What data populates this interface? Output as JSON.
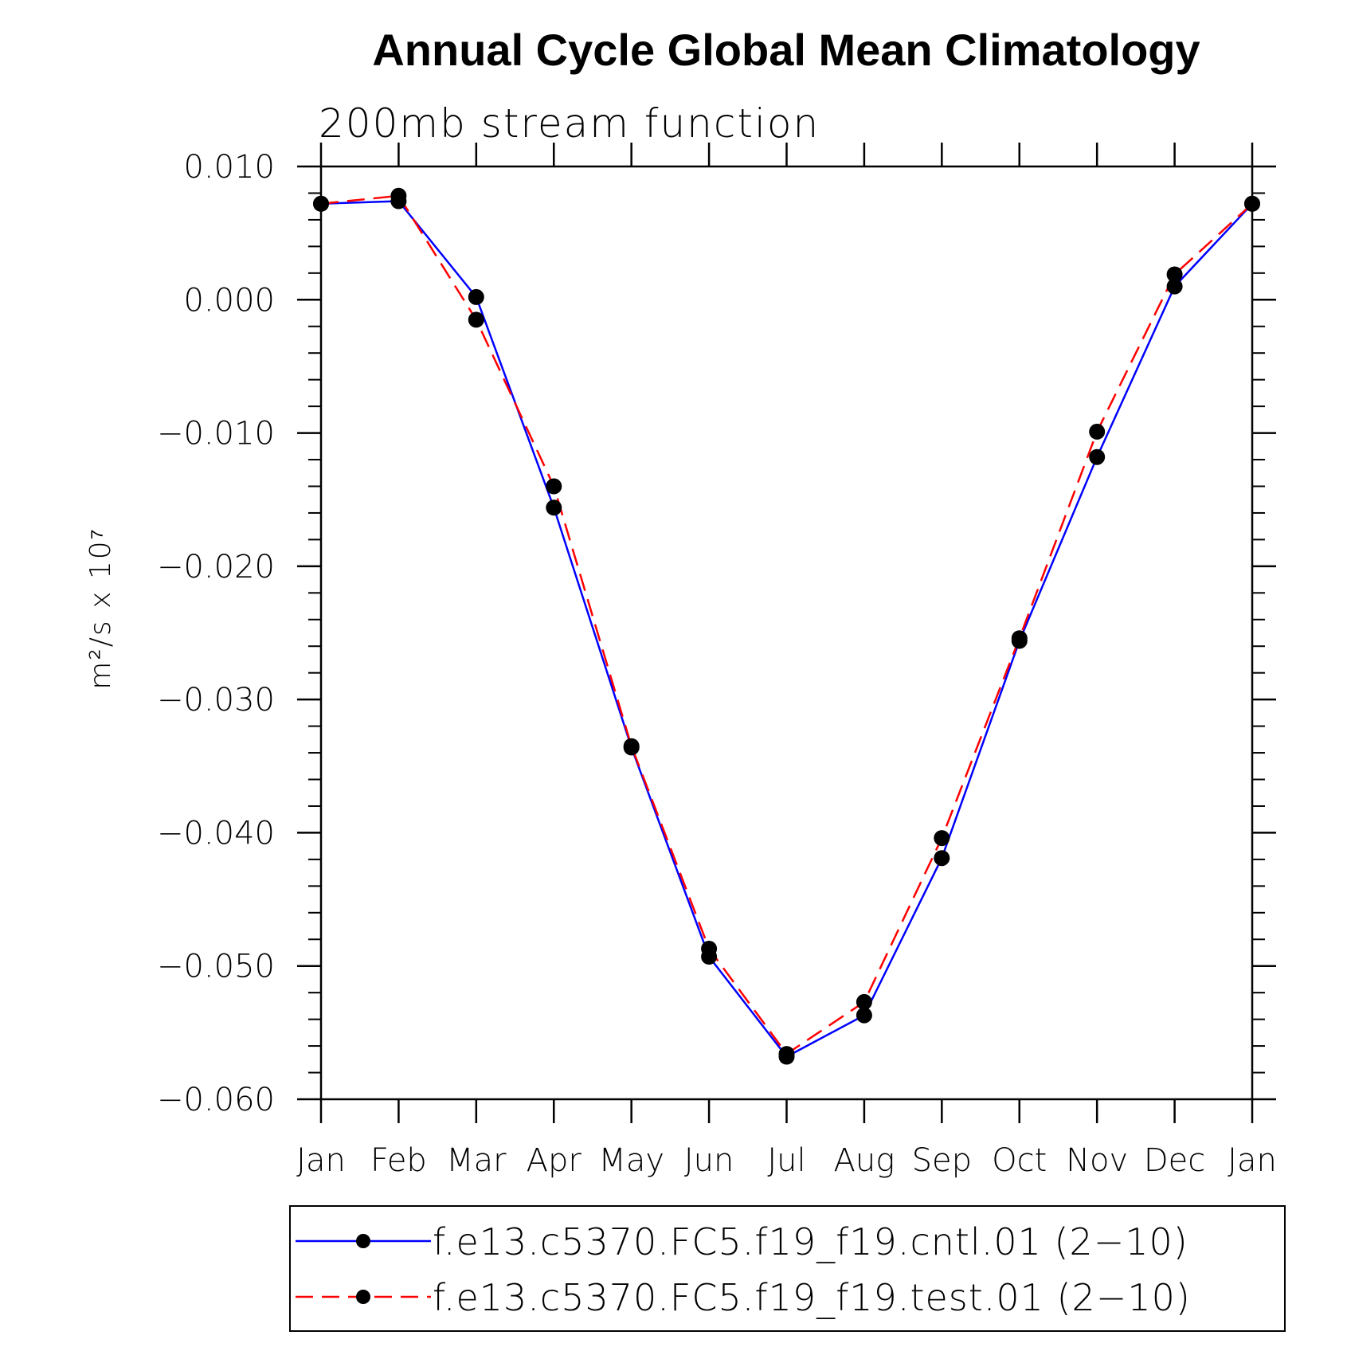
{
  "chart_data": {
    "type": "line",
    "title": "Annual Cycle Global Mean Climatology",
    "subtitle": "200mb stream function",
    "ylabel": "m²/s x 10⁷",
    "xlabel": "",
    "categories": [
      "Jan",
      "Feb",
      "Mar",
      "Apr",
      "May",
      "Jun",
      "Jul",
      "Aug",
      "Sep",
      "Oct",
      "Nov",
      "Dec",
      "Jan"
    ],
    "ylim": [
      -0.06,
      0.01
    ],
    "yticks": [
      0.01,
      0.0,
      -0.01,
      -0.02,
      -0.03,
      -0.04,
      -0.05,
      -0.06
    ],
    "ytick_labels": [
      "0.010",
      "0.000",
      "−0.010",
      "−0.020",
      "−0.030",
      "−0.040",
      "−0.050",
      "−0.060"
    ],
    "grid": false,
    "legend_position": "bottom",
    "series": [
      {
        "name": "f.e13.c5370.FC5.f19_f19.cntl.01 (2−10)",
        "color": "#0000ff",
        "line_style": "solid",
        "marker": "filled-circle",
        "values": [
          0.0072,
          0.0074,
          0.0002,
          -0.0156,
          -0.0336,
          -0.0493,
          -0.0568,
          -0.0537,
          -0.0419,
          -0.0256,
          -0.0118,
          0.001,
          0.0072
        ]
      },
      {
        "name": "f.e13.c5370.FC5.f19_f19.test.01 (2−10)",
        "color": "#ff0000",
        "line_style": "dashed",
        "marker": "filled-circle",
        "values": [
          0.0072,
          0.0078,
          -0.0015,
          -0.014,
          -0.0335,
          -0.0487,
          -0.0566,
          -0.0527,
          -0.0404,
          -0.0254,
          -0.0099,
          0.0019,
          0.0072
        ]
      }
    ]
  }
}
